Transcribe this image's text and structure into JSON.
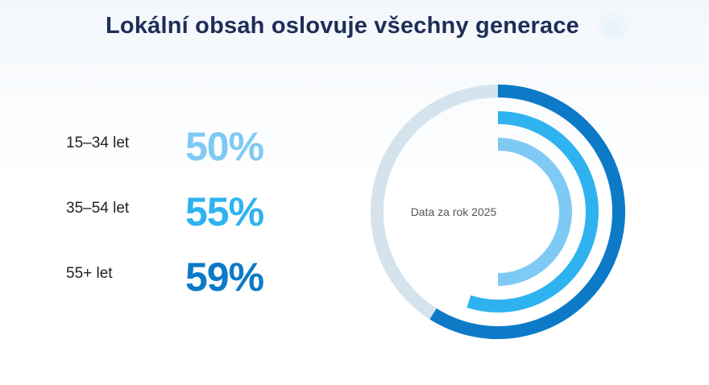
{
  "title": "Lokální obsah oslovuje všechny generace",
  "chart_data": {
    "type": "radial-bar",
    "center_label": "Data za rok 2025",
    "categories": [
      "15–34 let",
      "35–54 let",
      "55+ let"
    ],
    "values": [
      50,
      55,
      59
    ],
    "display_values": [
      "50%",
      "55%",
      "59%"
    ],
    "max": 100,
    "colors": [
      "#7fcaf5",
      "#2fb3f0",
      "#0c7ac7"
    ],
    "track_color": "#d4e3ec"
  }
}
